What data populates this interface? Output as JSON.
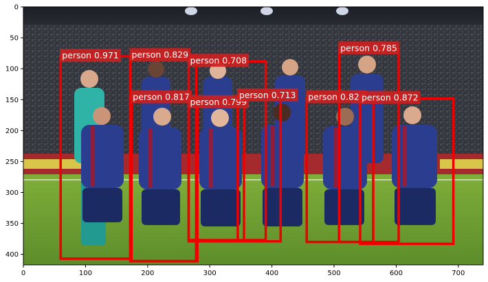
{
  "chart_data": {
    "type": "scatter",
    "xlim": [
      0,
      740
    ],
    "ylim": [
      417,
      0
    ],
    "x_ticks": [
      0,
      100,
      200,
      300,
      400,
      500,
      600,
      700
    ],
    "y_ticks": [
      0,
      50,
      100,
      150,
      200,
      250,
      300,
      350,
      400
    ],
    "grid": false,
    "box_color": "#ee0000",
    "label_bg": "#cc1f1f",
    "detections": [
      {
        "label": "person 0.971",
        "x1": 60,
        "y1": 80,
        "x2": 172,
        "y2": 407
      },
      {
        "label": "person 0.829",
        "x1": 172,
        "y1": 79,
        "x2": 278,
        "y2": 411
      },
      {
        "label": "person 0.708",
        "x1": 266,
        "y1": 88,
        "x2": 390,
        "y2": 377
      },
      {
        "label": "person 0.785",
        "x1": 508,
        "y1": 68,
        "x2": 604,
        "y2": 380
      },
      {
        "label": "person 0.817",
        "x1": 174,
        "y1": 147,
        "x2": 280,
        "y2": 411
      },
      {
        "label": "person 0.799",
        "x1": 266,
        "y1": 155,
        "x2": 355,
        "y2": 379
      },
      {
        "label": "person 0.713",
        "x1": 345,
        "y1": 144,
        "x2": 414,
        "y2": 379
      },
      {
        "label": "person 0.824",
        "x1": 456,
        "y1": 147,
        "x2": 563,
        "y2": 380
      },
      {
        "label": "person 0.872",
        "x1": 542,
        "y1": 148,
        "x2": 692,
        "y2": 383
      }
    ]
  }
}
